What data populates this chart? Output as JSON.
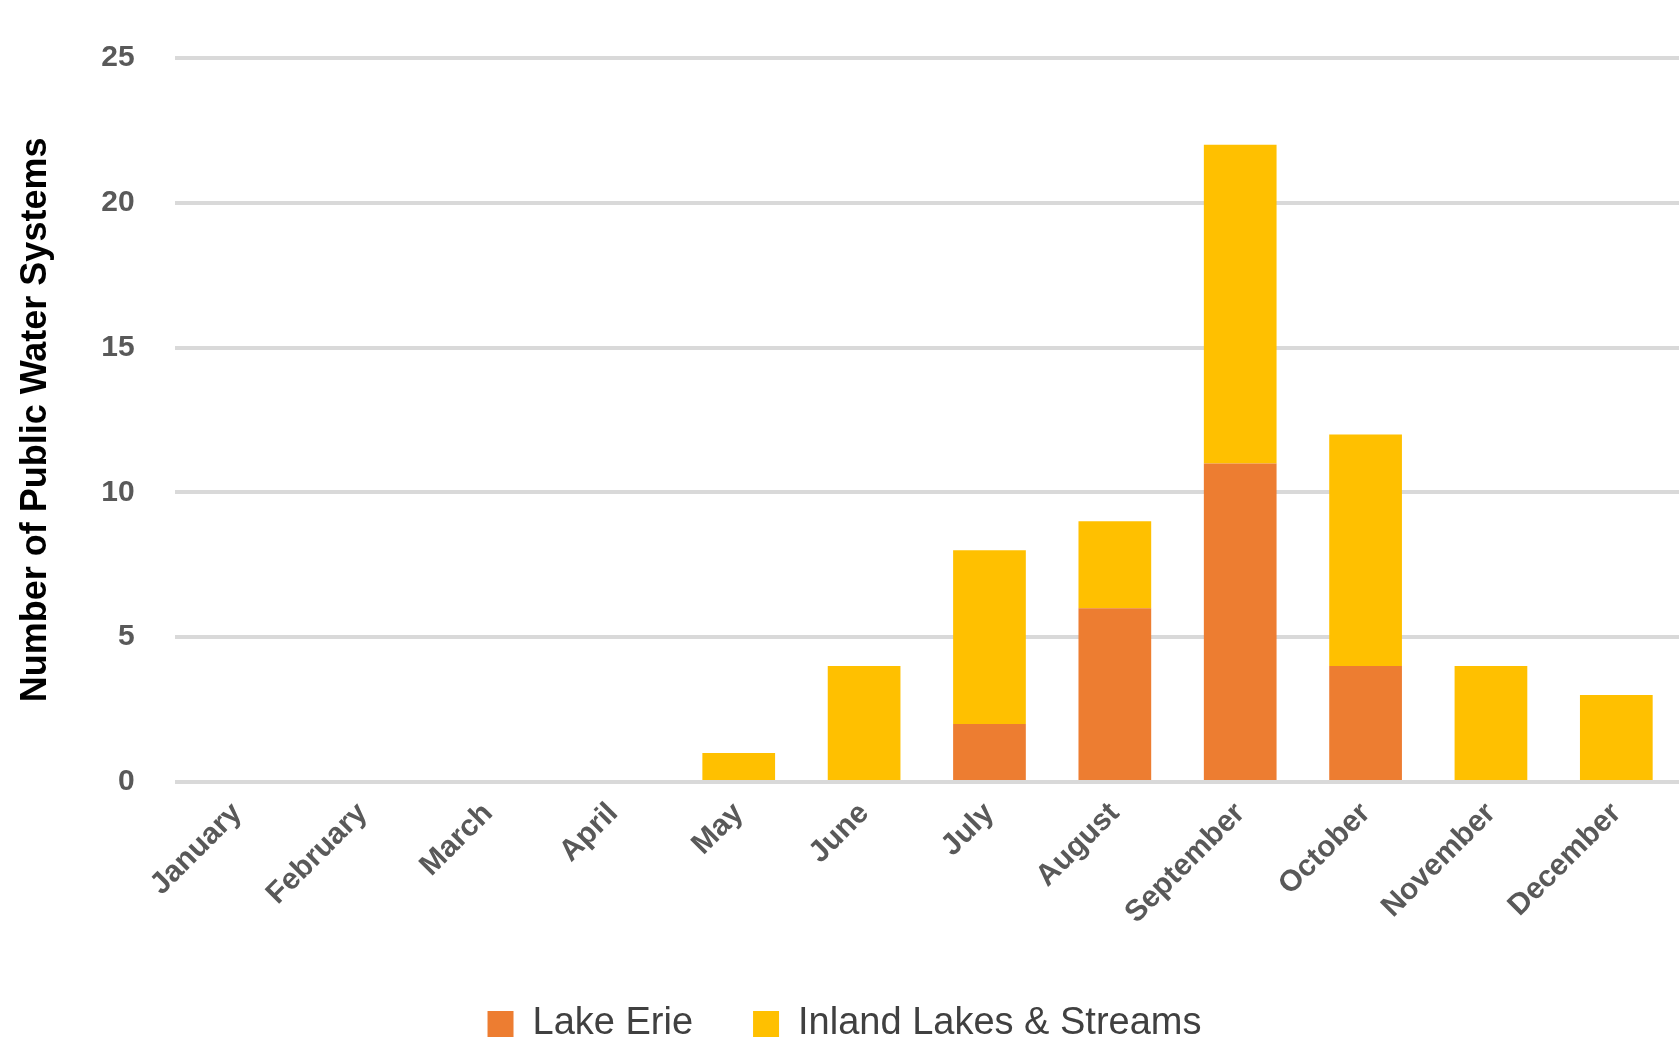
{
  "chart_data": {
    "type": "bar",
    "stacked": true,
    "ylabel": "Number of Public Water Systems",
    "categories": [
      "January",
      "February",
      "March",
      "April",
      "May",
      "June",
      "July",
      "August",
      "September",
      "October",
      "November",
      "December"
    ],
    "series": [
      {
        "name": "Lake Erie",
        "color": "#ed7d31",
        "values": [
          0,
          0,
          0,
          0,
          0,
          0,
          2,
          6,
          11,
          4,
          0,
          0
        ]
      },
      {
        "name": "Inland Lakes & Streams",
        "color": "#ffc000",
        "values": [
          0,
          0,
          0,
          0,
          1,
          4,
          6,
          3,
          11,
          8,
          4,
          3
        ]
      }
    ],
    "ylim": [
      0,
      25
    ],
    "yticks": [
      0,
      5,
      10,
      15,
      20,
      25
    ],
    "grid": "y",
    "legend": "bottom"
  }
}
